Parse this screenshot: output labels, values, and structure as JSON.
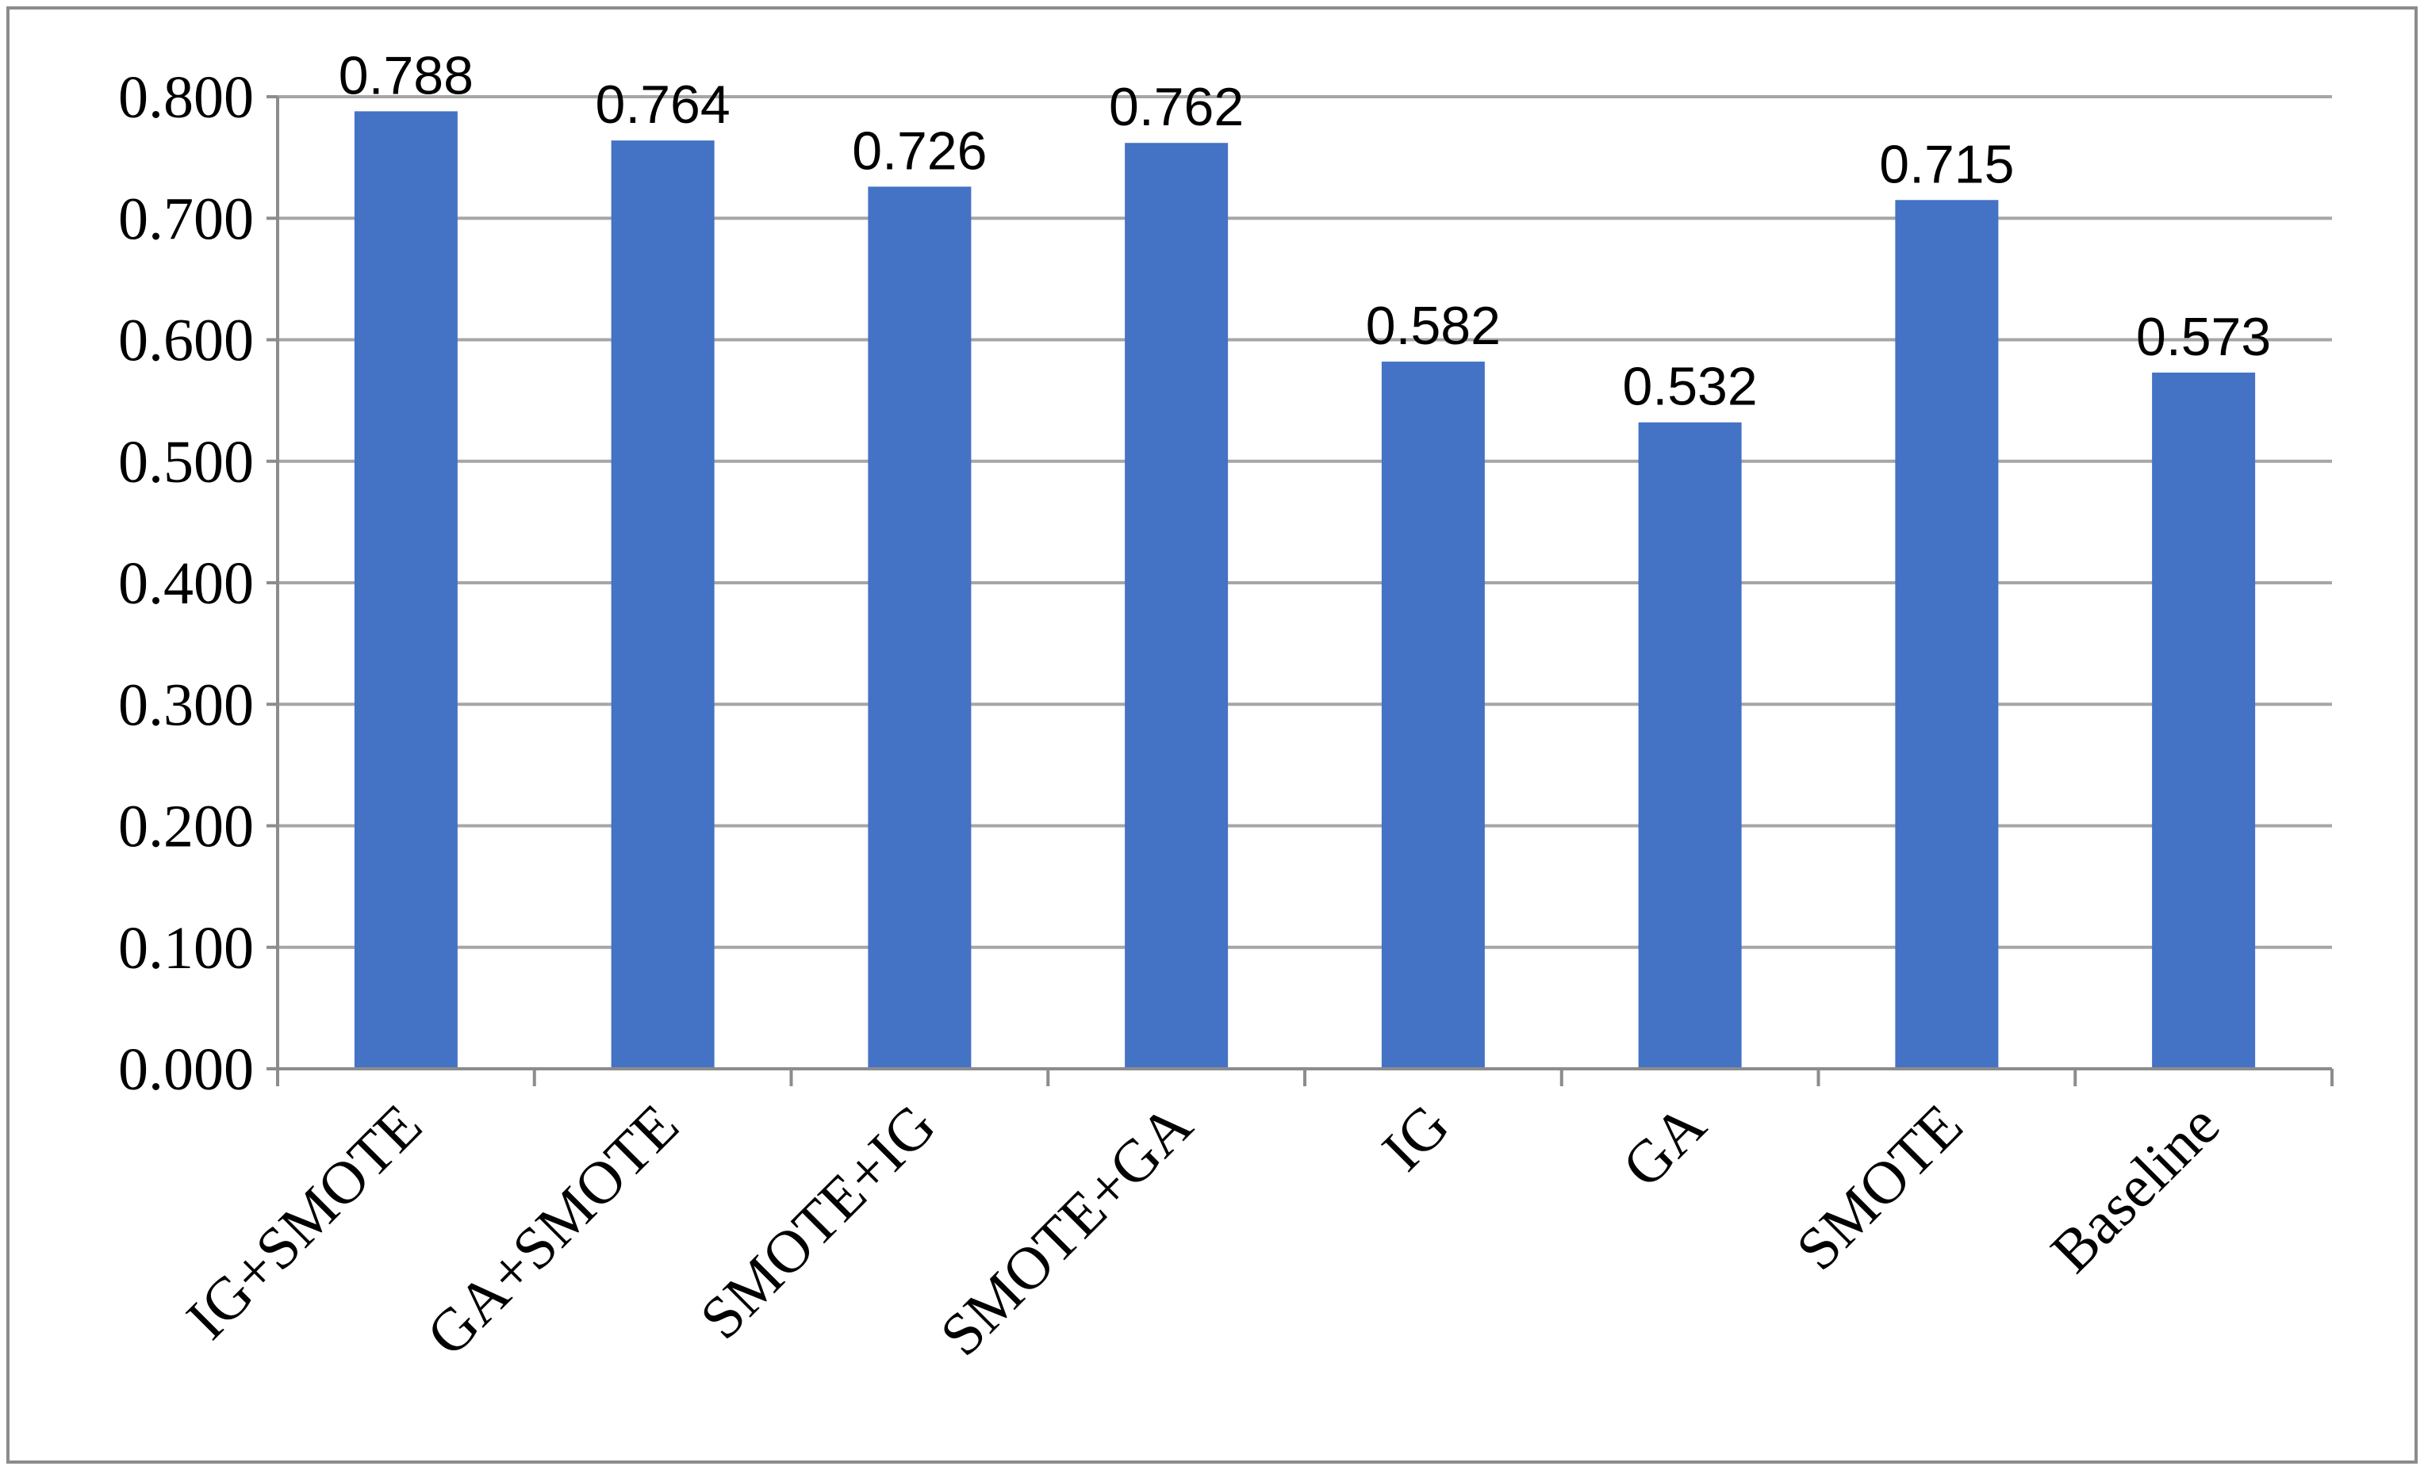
{
  "chart_data": {
    "type": "bar",
    "title": "",
    "xlabel": "",
    "ylabel": "",
    "categories": [
      "IG+SMOTE",
      "GA+SMOTE",
      "SMOTE+IG",
      "SMOTE+GA",
      "IG",
      "GA",
      "SMOTE",
      "Baseline"
    ],
    "values": [
      0.788,
      0.764,
      0.726,
      0.762,
      0.582,
      0.532,
      0.715,
      0.573
    ],
    "value_labels": [
      "0.788",
      "0.764",
      "0.726",
      "0.762",
      "0.582",
      "0.532",
      "0.715",
      "0.573"
    ],
    "ylim": [
      0,
      0.8
    ],
    "y_ticks": [
      0,
      0.1,
      0.2,
      0.3,
      0.4,
      0.5,
      0.6,
      0.7,
      0.8
    ],
    "y_tick_labels": [
      "0.000",
      "0.100",
      "0.200",
      "0.300",
      "0.400",
      "0.500",
      "0.600",
      "0.700",
      "0.800"
    ],
    "grid": true,
    "legend": "none",
    "bar_color": "#4472C4",
    "grid_color": "#A6A6A6"
  }
}
